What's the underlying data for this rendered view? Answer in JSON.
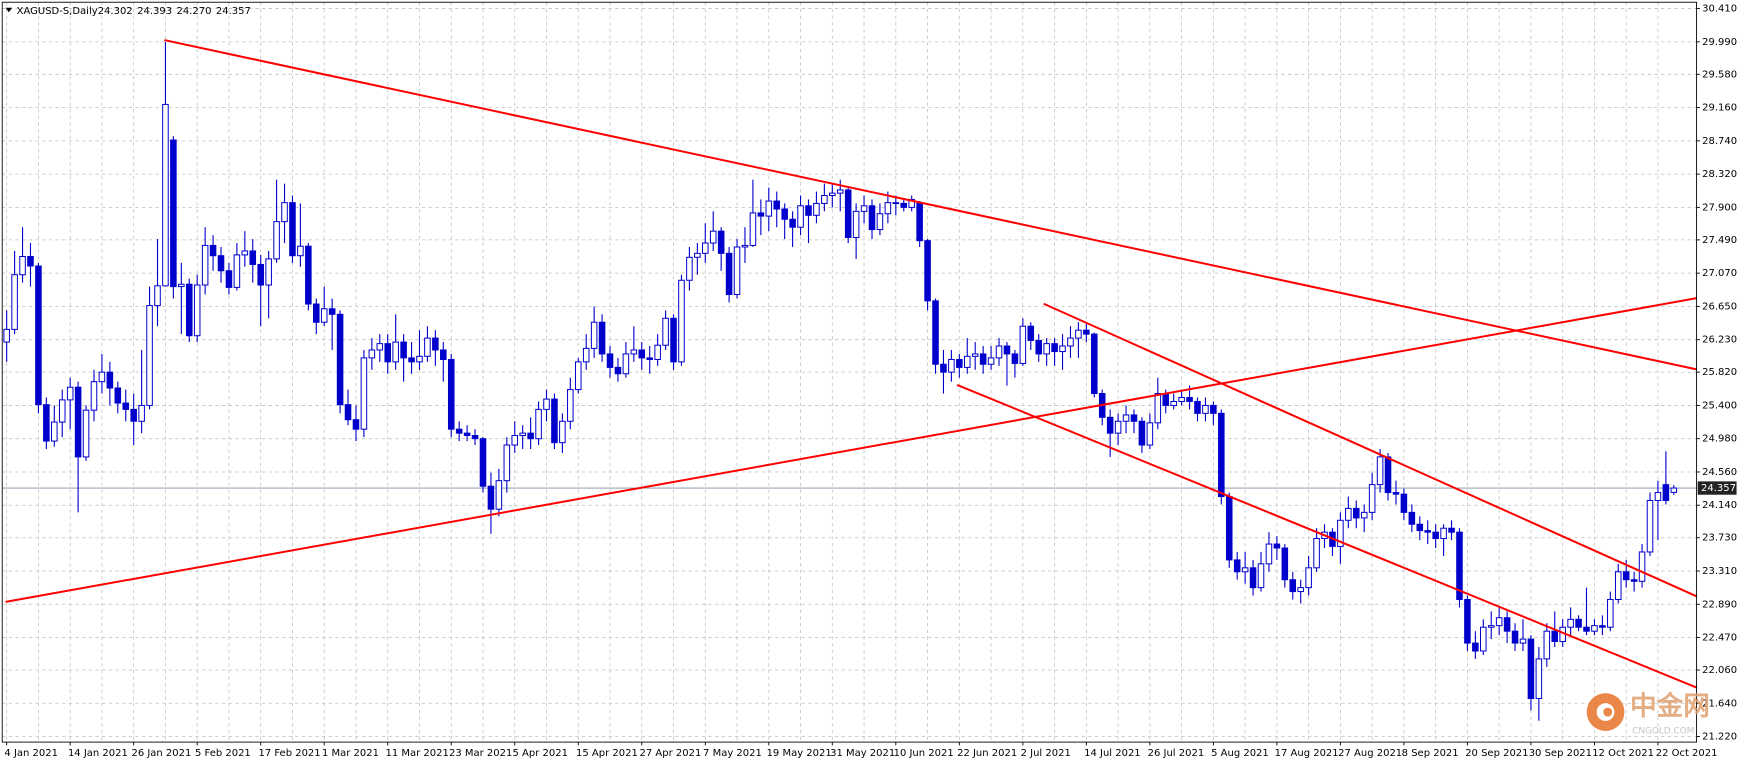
{
  "chart_data": {
    "type": "candlestick",
    "title": "XAGUSD-S,Daily",
    "header_prices": [
      "24.302",
      "24.393",
      "24.270",
      "24.357"
    ],
    "categories": [
      "4 Jan 2021",
      null,
      null,
      null,
      null,
      null,
      null,
      null,
      "14 Jan 2021",
      null,
      null,
      null,
      null,
      null,
      null,
      null,
      "26 Jan 2021",
      null,
      null,
      null,
      null,
      null,
      null,
      null,
      "5 Feb 2021",
      null,
      null,
      null,
      null,
      null,
      null,
      null,
      "17 Feb 2021",
      null,
      null,
      null,
      null,
      null,
      null,
      null,
      "1 Mar 2021",
      null,
      null,
      null,
      null,
      null,
      null,
      null,
      "11 Mar 2021",
      null,
      null,
      null,
      null,
      null,
      null,
      null,
      "23 Mar 2021",
      null,
      null,
      null,
      null,
      null,
      null,
      null,
      "5 Apr 2021",
      null,
      null,
      null,
      null,
      null,
      null,
      null,
      "15 Apr 2021",
      null,
      null,
      null,
      null,
      null,
      null,
      null,
      "27 Apr 2021",
      null,
      null,
      null,
      null,
      null,
      null,
      null,
      "7 May 2021",
      null,
      null,
      null,
      null,
      null,
      null,
      null,
      "19 May 2021",
      null,
      null,
      null,
      null,
      null,
      null,
      null,
      "31 May 2021",
      null,
      null,
      null,
      null,
      null,
      null,
      null,
      "10 Jun 2021",
      null,
      null,
      null,
      null,
      null,
      null,
      null,
      "22 Jun 2021",
      null,
      null,
      null,
      null,
      null,
      null,
      null,
      "2 Jul 2021",
      null,
      null,
      null,
      null,
      null,
      null,
      null,
      "14 Jul 2021",
      null,
      null,
      null,
      null,
      null,
      null,
      null,
      "26 Jul 2021",
      null,
      null,
      null,
      null,
      null,
      null,
      null,
      "5 Aug 2021",
      null,
      null,
      null,
      null,
      null,
      null,
      null,
      "17 Aug 2021",
      null,
      null,
      null,
      null,
      null,
      null,
      null,
      "27 Aug 2021",
      null,
      null,
      null,
      null,
      null,
      null,
      null,
      "8 Sep 2021",
      null,
      null,
      null,
      null,
      null,
      null,
      null,
      "20 Sep 2021",
      null,
      null,
      null,
      null,
      null,
      null,
      null,
      "30 Sep 2021",
      null,
      null,
      null,
      null,
      null,
      null,
      null,
      "12 Oct 2021",
      null,
      null,
      null,
      null,
      null,
      null,
      null,
      "22 Oct 2021",
      null,
      null
    ],
    "open": [
      26.2,
      26.36,
      27.05,
      27.28,
      27.16,
      25.41,
      24.95,
      25.19,
      25.47,
      25.63,
      24.75,
      25.34,
      25.7,
      25.82,
      25.62,
      25.43,
      25.35,
      25.2,
      25.4,
      26.66,
      26.91,
      28.75,
      26.9,
      26.93,
      26.28,
      26.92,
      27.42,
      27.29,
      27.1,
      26.89,
      27.3,
      27.35,
      27.18,
      26.92,
      27.25,
      27.72,
      27.96,
      27.29,
      27.41,
      26.68,
      26.45,
      26.62,
      26.55,
      25.41,
      25.22,
      25.1,
      26.0,
      26.1,
      26.18,
      25.95,
      26.2,
      26.0,
      25.95,
      26.02,
      26.25,
      26.1,
      25.98,
      25.1,
      25.05,
      25.02,
      24.98,
      24.38,
      24.09,
      24.45,
      24.9,
      25.02,
      25.05,
      24.98,
      25.35,
      25.48,
      24.93,
      25.2,
      25.6,
      25.95,
      26.12,
      26.45,
      26.05,
      25.88,
      25.8,
      26.05,
      26.1,
      26.0,
      25.98,
      26.16,
      26.5,
      25.95,
      26.98,
      27.27,
      27.32,
      27.45,
      27.6,
      27.32,
      26.8,
      27.4,
      27.42,
      27.83,
      27.79,
      27.98,
      27.88,
      27.75,
      27.65,
      27.92,
      27.8,
      27.95,
      28.05,
      28.08,
      28.12,
      27.52,
      27.85,
      27.92,
      27.62,
      27.82,
      27.96,
      27.95,
      27.9,
      27.95,
      27.48,
      26.72,
      25.92,
      25.82,
      25.98,
      25.88,
      26.02,
      26.05,
      25.92,
      26.0,
      26.15,
      26.05,
      25.93,
      26.4,
      26.22,
      26.05,
      26.18,
      26.08,
      26.15,
      26.25,
      26.35,
      26.3,
      25.55,
      25.25,
      25.05,
      25.2,
      25.28,
      25.2,
      24.9,
      25.18,
      25.55,
      25.4,
      25.45,
      25.5,
      25.45,
      25.3,
      25.4,
      25.3,
      24.25,
      23.45,
      23.3,
      23.35,
      23.1,
      23.4,
      23.65,
      23.6,
      23.2,
      23.05,
      23.1,
      23.35,
      23.72,
      23.8,
      23.62,
      23.95,
      24.1,
      23.98,
      24.05,
      24.4,
      24.75,
      24.3,
      24.28,
      24.05,
      23.9,
      23.82,
      23.8,
      23.72,
      23.85,
      23.8,
      22.95,
      22.4,
      22.3,
      22.6,
      22.62,
      22.72,
      22.55,
      22.4,
      22.45,
      21.7,
      22.2,
      22.55,
      22.42,
      22.6,
      22.7,
      22.6,
      22.55,
      22.62,
      22.6,
      22.95,
      23.3,
      23.2,
      23.18,
      23.55,
      24.2,
      24.4,
      24.302
    ],
    "high": [
      26.6,
      27.35,
      27.65,
      27.45,
      27.2,
      25.5,
      25.4,
      25.6,
      25.75,
      25.7,
      25.4,
      25.85,
      26.05,
      25.95,
      25.7,
      25.6,
      25.55,
      26.1,
      26.9,
      27.5,
      29.99,
      28.8,
      27.2,
      27.0,
      27.05,
      27.65,
      27.55,
      27.4,
      27.2,
      27.45,
      27.6,
      27.5,
      27.3,
      27.35,
      28.25,
      28.2,
      28.05,
      27.95,
      27.45,
      26.75,
      26.9,
      26.75,
      26.6,
      25.6,
      25.4,
      26.1,
      26.25,
      26.3,
      26.3,
      26.55,
      26.3,
      26.2,
      26.35,
      26.4,
      26.35,
      26.2,
      26.05,
      25.2,
      25.15,
      25.1,
      25.0,
      24.55,
      24.6,
      25.0,
      25.2,
      25.15,
      25.25,
      25.45,
      25.6,
      25.55,
      25.3,
      25.75,
      26.0,
      26.3,
      26.65,
      26.55,
      26.15,
      26.0,
      26.2,
      26.4,
      26.2,
      26.15,
      26.3,
      26.6,
      26.55,
      27.05,
      27.4,
      27.45,
      27.7,
      27.85,
      27.65,
      27.4,
      27.5,
      27.65,
      28.25,
      28.0,
      28.15,
      28.1,
      27.95,
      27.85,
      28.05,
      28.0,
      28.1,
      28.2,
      28.2,
      28.25,
      28.15,
      27.95,
      28.05,
      28.0,
      27.95,
      28.1,
      28.05,
      28.0,
      28.05,
      27.98,
      27.5,
      26.75,
      26.1,
      26.1,
      26.05,
      26.25,
      26.2,
      26.15,
      26.15,
      26.25,
      26.2,
      26.1,
      26.5,
      26.45,
      26.3,
      26.25,
      26.25,
      26.3,
      26.4,
      26.45,
      26.45,
      26.32,
      25.6,
      25.35,
      25.3,
      25.4,
      25.35,
      25.25,
      25.3,
      25.75,
      25.6,
      25.55,
      25.6,
      25.65,
      25.5,
      25.5,
      25.45,
      25.35,
      24.3,
      23.55,
      23.55,
      23.45,
      23.55,
      23.8,
      23.75,
      23.65,
      23.3,
      23.2,
      23.5,
      23.85,
      23.9,
      23.85,
      24.05,
      24.25,
      24.2,
      24.15,
      24.55,
      24.85,
      24.8,
      24.45,
      24.35,
      24.15,
      24.0,
      23.95,
      23.9,
      23.9,
      23.95,
      23.85,
      23.0,
      22.55,
      22.7,
      22.8,
      22.85,
      22.8,
      22.65,
      22.7,
      22.5,
      22.35,
      22.65,
      22.8,
      22.7,
      22.85,
      22.75,
      23.1,
      22.7,
      22.75,
      23.05,
      23.4,
      23.45,
      23.3,
      23.65,
      24.3,
      24.45,
      24.82,
      24.393
    ],
    "low": [
      25.95,
      26.3,
      26.95,
      26.9,
      25.3,
      24.85,
      24.88,
      25.0,
      25.1,
      24.05,
      24.7,
      25.2,
      25.55,
      25.4,
      25.3,
      25.2,
      24.9,
      25.05,
      25.35,
      26.4,
      26.9,
      26.75,
      26.3,
      26.2,
      26.2,
      26.8,
      27.1,
      26.95,
      26.8,
      26.85,
      27.15,
      26.95,
      26.4,
      26.5,
      27.2,
      27.45,
      27.2,
      27.15,
      26.6,
      26.3,
      26.4,
      26.1,
      25.3,
      25.15,
      24.95,
      25.0,
      25.85,
      25.95,
      25.8,
      25.85,
      25.7,
      25.8,
      25.85,
      25.95,
      25.9,
      25.7,
      25.0,
      24.95,
      24.95,
      24.9,
      24.3,
      23.78,
      24.0,
      24.3,
      24.8,
      24.85,
      24.85,
      24.9,
      25.2,
      24.85,
      24.8,
      25.1,
      25.55,
      25.85,
      26.0,
      25.95,
      25.75,
      25.7,
      25.75,
      25.95,
      25.85,
      25.8,
      25.9,
      26.1,
      25.85,
      25.9,
      26.85,
      27.05,
      27.2,
      27.35,
      27.1,
      26.7,
      26.75,
      27.2,
      27.4,
      27.55,
      27.6,
      27.65,
      27.5,
      27.4,
      27.55,
      27.45,
      27.7,
      27.85,
      27.9,
      27.85,
      27.45,
      27.25,
      27.7,
      27.5,
      27.55,
      27.7,
      27.8,
      27.85,
      27.85,
      27.4,
      26.6,
      25.8,
      25.55,
      25.7,
      25.75,
      25.8,
      25.85,
      25.8,
      25.85,
      25.9,
      25.65,
      25.75,
      25.9,
      26.1,
      25.95,
      25.9,
      25.9,
      25.85,
      26.0,
      26.0,
      26.2,
      25.5,
      25.15,
      24.75,
      24.9,
      25.05,
      25.05,
      24.8,
      24.85,
      25.1,
      25.3,
      25.35,
      25.4,
      25.35,
      25.2,
      25.2,
      25.15,
      24.15,
      23.35,
      23.2,
      23.15,
      23.0,
      23.05,
      23.3,
      23.45,
      23.1,
      22.95,
      22.9,
      23.0,
      23.3,
      23.6,
      23.5,
      23.4,
      23.85,
      23.85,
      23.8,
      23.95,
      24.3,
      24.2,
      24.15,
      23.95,
      23.8,
      23.7,
      23.65,
      23.6,
      23.5,
      23.7,
      22.85,
      22.3,
      22.2,
      22.25,
      22.45,
      22.5,
      22.4,
      22.3,
      22.3,
      21.55,
      21.42,
      22.1,
      22.35,
      22.35,
      22.5,
      22.55,
      22.5,
      22.5,
      22.5,
      22.55,
      22.9,
      23.1,
      23.05,
      23.1,
      23.5,
      23.7,
      24.15,
      24.27
    ],
    "close": [
      26.36,
      27.05,
      27.28,
      27.16,
      25.41,
      24.95,
      25.19,
      25.47,
      25.63,
      24.75,
      25.34,
      25.7,
      25.82,
      25.62,
      25.43,
      25.35,
      25.2,
      25.4,
      26.66,
      26.91,
      29.2,
      26.9,
      26.93,
      26.28,
      26.92,
      27.42,
      27.29,
      27.1,
      26.89,
      27.3,
      27.35,
      27.18,
      26.92,
      27.25,
      27.72,
      27.96,
      27.29,
      27.41,
      26.68,
      26.45,
      26.62,
      26.55,
      25.41,
      25.22,
      25.1,
      26.0,
      26.1,
      26.18,
      25.95,
      26.2,
      26.0,
      25.95,
      26.02,
      26.25,
      26.1,
      25.98,
      25.1,
      25.05,
      25.02,
      24.98,
      24.38,
      24.09,
      24.45,
      24.9,
      25.02,
      25.05,
      24.98,
      25.35,
      25.48,
      24.93,
      25.2,
      25.6,
      25.95,
      26.12,
      26.45,
      26.05,
      25.88,
      25.8,
      26.05,
      26.1,
      26.0,
      25.98,
      26.16,
      26.5,
      25.95,
      26.98,
      27.27,
      27.32,
      27.45,
      27.6,
      27.32,
      26.8,
      27.4,
      27.42,
      27.83,
      27.79,
      27.98,
      27.88,
      27.75,
      27.65,
      27.92,
      27.8,
      27.95,
      28.05,
      28.08,
      28.12,
      27.52,
      27.85,
      27.92,
      27.62,
      27.82,
      27.96,
      27.95,
      27.9,
      28.0,
      27.48,
      26.72,
      25.92,
      25.82,
      25.98,
      25.88,
      26.02,
      26.05,
      25.92,
      26.0,
      26.15,
      26.05,
      25.93,
      26.4,
      26.22,
      26.05,
      26.18,
      26.08,
      26.15,
      26.25,
      26.35,
      26.3,
      25.55,
      25.25,
      25.05,
      25.2,
      25.28,
      25.2,
      24.9,
      25.18,
      25.55,
      25.4,
      25.45,
      25.5,
      25.45,
      25.3,
      25.4,
      25.3,
      24.25,
      23.45,
      23.3,
      23.35,
      23.1,
      23.4,
      23.65,
      23.6,
      23.2,
      23.05,
      23.1,
      23.35,
      23.72,
      23.8,
      23.62,
      23.95,
      24.1,
      23.98,
      24.05,
      24.4,
      24.75,
      24.3,
      24.28,
      24.05,
      23.9,
      23.82,
      23.8,
      23.72,
      23.85,
      23.8,
      22.95,
      22.4,
      22.3,
      22.6,
      22.62,
      22.72,
      22.55,
      22.4,
      22.45,
      21.7,
      22.2,
      22.55,
      22.42,
      22.6,
      22.7,
      22.6,
      22.55,
      22.62,
      22.6,
      22.95,
      23.3,
      23.2,
      23.18,
      23.55,
      24.2,
      24.3,
      24.2,
      24.357
    ],
    "up_color": "#ffffff",
    "down_color": "#0000cd",
    "wick_color": "#0000cd",
    "last_price": {
      "value": 24.357,
      "label": "24.357"
    },
    "ylim": [
      21.15,
      30.49
    ],
    "yticks": [
      {
        "value": 30.41,
        "label": "30.410"
      },
      {
        "value": 29.99,
        "label": "29.990"
      },
      {
        "value": 29.58,
        "label": "29.580"
      },
      {
        "value": 29.16,
        "label": "29.160"
      },
      {
        "value": 28.74,
        "label": "28.740"
      },
      {
        "value": 28.32,
        "label": "28.320"
      },
      {
        "value": 27.9,
        "label": "27.900"
      },
      {
        "value": 27.49,
        "label": "27.490"
      },
      {
        "value": 27.07,
        "label": "27.070"
      },
      {
        "value": 26.65,
        "label": "26.650"
      },
      {
        "value": 26.23,
        "label": "26.230"
      },
      {
        "value": 25.82,
        "label": "25.820"
      },
      {
        "value": 25.4,
        "label": "25.400"
      },
      {
        "value": 24.98,
        "label": "24.980"
      },
      {
        "value": 24.56,
        "label": "24.560"
      },
      {
        "value": 24.14,
        "label": "24.140"
      },
      {
        "value": 23.73,
        "label": "23.730"
      },
      {
        "value": 23.31,
        "label": "23.310"
      },
      {
        "value": 22.89,
        "label": "22.890"
      },
      {
        "value": 22.47,
        "label": "22.470"
      },
      {
        "value": 22.06,
        "label": "22.060"
      },
      {
        "value": 21.64,
        "label": "21.640"
      },
      {
        "value": 21.22,
        "label": "21.220"
      }
    ],
    "grid": true,
    "watermark": {
      "text": "中金网",
      "sub": "CNGOLD.COM"
    }
  }
}
